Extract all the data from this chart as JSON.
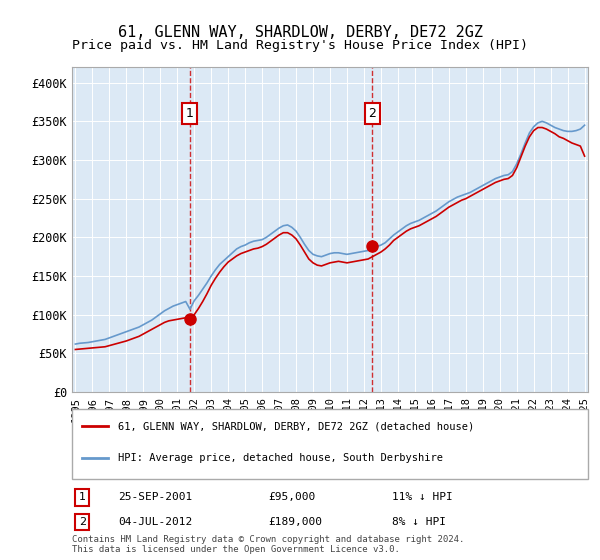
{
  "title": "61, GLENN WAY, SHARDLOW, DERBY, DE72 2GZ",
  "subtitle": "Price paid vs. HM Land Registry's House Price Index (HPI)",
  "title_fontsize": 11,
  "subtitle_fontsize": 9.5,
  "bg_color": "#dce9f5",
  "plot_bg": "#dce9f5",
  "fig_bg": "#ffffff",
  "legend_entry1": "61, GLENN WAY, SHARDLOW, DERBY, DE72 2GZ (detached house)",
  "legend_entry2": "HPI: Average price, detached house, South Derbyshire",
  "transaction1_date": "25-SEP-2001",
  "transaction1_price": 95000,
  "transaction1_pct": "11% ↓ HPI",
  "transaction1_label": "1",
  "transaction2_date": "04-JUL-2012",
  "transaction2_price": 189000,
  "transaction2_pct": "8% ↓ HPI",
  "transaction2_label": "2",
  "footer": "Contains HM Land Registry data © Crown copyright and database right 2024.\nThis data is licensed under the Open Government Licence v3.0.",
  "ylim": [
    0,
    420000
  ],
  "yticks": [
    0,
    50000,
    100000,
    150000,
    200000,
    250000,
    300000,
    350000,
    400000
  ],
  "ytick_labels": [
    "£0",
    "£50K",
    "£100K",
    "£150K",
    "£200K",
    "£250K",
    "£300K",
    "£350K",
    "£400K"
  ],
  "red_line_color": "#cc0000",
  "blue_line_color": "#6699cc",
  "marker_color": "#cc0000",
  "transaction1_x": 2001.73,
  "transaction2_x": 2012.5,
  "hpi_data_x": [
    1995,
    1995.25,
    1995.5,
    1995.75,
    1996,
    1996.25,
    1996.5,
    1996.75,
    1997,
    1997.25,
    1997.5,
    1997.75,
    1998,
    1998.25,
    1998.5,
    1998.75,
    1999,
    1999.25,
    1999.5,
    1999.75,
    2000,
    2000.25,
    2000.5,
    2000.75,
    2001,
    2001.25,
    2001.5,
    2001.75,
    2002,
    2002.25,
    2002.5,
    2002.75,
    2003,
    2003.25,
    2003.5,
    2003.75,
    2004,
    2004.25,
    2004.5,
    2004.75,
    2005,
    2005.25,
    2005.5,
    2005.75,
    2006,
    2006.25,
    2006.5,
    2006.75,
    2007,
    2007.25,
    2007.5,
    2007.75,
    2008,
    2008.25,
    2008.5,
    2008.75,
    2009,
    2009.25,
    2009.5,
    2009.75,
    2010,
    2010.25,
    2010.5,
    2010.75,
    2011,
    2011.25,
    2011.5,
    2011.75,
    2012,
    2012.25,
    2012.5,
    2012.75,
    2013,
    2013.25,
    2013.5,
    2013.75,
    2014,
    2014.25,
    2014.5,
    2014.75,
    2015,
    2015.25,
    2015.5,
    2015.75,
    2016,
    2016.25,
    2016.5,
    2016.75,
    2017,
    2017.25,
    2017.5,
    2017.75,
    2018,
    2018.25,
    2018.5,
    2018.75,
    2019,
    2019.25,
    2019.5,
    2019.75,
    2020,
    2020.25,
    2020.5,
    2020.75,
    2021,
    2021.25,
    2021.5,
    2021.75,
    2022,
    2022.25,
    2022.5,
    2022.75,
    2023,
    2023.25,
    2023.5,
    2023.75,
    2024,
    2024.25,
    2024.5,
    2024.75,
    2025
  ],
  "hpi_data_y": [
    62000,
    63000,
    63500,
    64000,
    65000,
    66000,
    67000,
    68000,
    70000,
    72000,
    74000,
    76000,
    78000,
    80000,
    82000,
    84000,
    87000,
    90000,
    93000,
    97000,
    101000,
    105000,
    108000,
    111000,
    113000,
    115000,
    117000,
    107000,
    118000,
    125000,
    133000,
    141000,
    150000,
    158000,
    165000,
    170000,
    175000,
    180000,
    185000,
    188000,
    190000,
    193000,
    195000,
    196000,
    197000,
    200000,
    204000,
    208000,
    212000,
    215000,
    216000,
    213000,
    208000,
    200000,
    191000,
    183000,
    178000,
    176000,
    175000,
    177000,
    179000,
    180000,
    180000,
    179000,
    178000,
    179000,
    180000,
    181000,
    182000,
    183000,
    186000,
    188000,
    190000,
    193000,
    198000,
    203000,
    207000,
    211000,
    215000,
    218000,
    220000,
    222000,
    225000,
    228000,
    231000,
    234000,
    238000,
    242000,
    246000,
    249000,
    252000,
    254000,
    256000,
    258000,
    261000,
    264000,
    267000,
    270000,
    273000,
    276000,
    278000,
    280000,
    281000,
    285000,
    295000,
    308000,
    322000,
    335000,
    343000,
    348000,
    350000,
    348000,
    345000,
    342000,
    340000,
    338000,
    337000,
    337000,
    338000,
    340000,
    345000
  ],
  "red_data_x": [
    1995,
    1995.25,
    1995.5,
    1995.75,
    1996,
    1996.25,
    1996.5,
    1996.75,
    1997,
    1997.25,
    1997.5,
    1997.75,
    1998,
    1998.25,
    1998.5,
    1998.75,
    1999,
    1999.25,
    1999.5,
    1999.75,
    2000,
    2000.25,
    2000.5,
    2000.75,
    2001,
    2001.25,
    2001.5,
    2001.75,
    2002,
    2002.25,
    2002.5,
    2002.75,
    2003,
    2003.25,
    2003.5,
    2003.75,
    2004,
    2004.25,
    2004.5,
    2004.75,
    2005,
    2005.25,
    2005.5,
    2005.75,
    2006,
    2006.25,
    2006.5,
    2006.75,
    2007,
    2007.25,
    2007.5,
    2007.75,
    2008,
    2008.25,
    2008.5,
    2008.75,
    2009,
    2009.25,
    2009.5,
    2009.75,
    2010,
    2010.25,
    2010.5,
    2010.75,
    2011,
    2011.25,
    2011.5,
    2011.75,
    2012,
    2012.25,
    2012.5,
    2012.75,
    2013,
    2013.25,
    2013.5,
    2013.75,
    2014,
    2014.25,
    2014.5,
    2014.75,
    2015,
    2015.25,
    2015.5,
    2015.75,
    2016,
    2016.25,
    2016.5,
    2016.75,
    2017,
    2017.25,
    2017.5,
    2017.75,
    2018,
    2018.25,
    2018.5,
    2018.75,
    2019,
    2019.25,
    2019.5,
    2019.75,
    2020,
    2020.25,
    2020.5,
    2020.75,
    2021,
    2021.25,
    2021.5,
    2021.75,
    2022,
    2022.25,
    2022.5,
    2022.75,
    2023,
    2023.25,
    2023.5,
    2023.75,
    2024,
    2024.25,
    2024.5,
    2024.75,
    2025
  ],
  "red_data_y": [
    55000,
    55500,
    56000,
    56500,
    57000,
    57500,
    58000,
    58500,
    60000,
    61500,
    63000,
    64500,
    66000,
    68000,
    70000,
    72000,
    75000,
    78000,
    81000,
    84000,
    87000,
    90000,
    92000,
    93000,
    94000,
    95000,
    96000,
    95000,
    100000,
    108000,
    117000,
    127000,
    138000,
    147000,
    155000,
    162000,
    168000,
    172000,
    176000,
    179000,
    181000,
    183000,
    185000,
    186000,
    188000,
    191000,
    195000,
    199000,
    203000,
    206000,
    206000,
    203000,
    198000,
    190000,
    181000,
    172000,
    167000,
    164000,
    163000,
    165000,
    167000,
    168000,
    169000,
    168000,
    167000,
    168000,
    169000,
    170000,
    171000,
    172000,
    175000,
    178000,
    181000,
    185000,
    190000,
    196000,
    200000,
    204000,
    208000,
    211000,
    213000,
    215000,
    218000,
    221000,
    224000,
    227000,
    231000,
    235000,
    239000,
    242000,
    245000,
    248000,
    250000,
    253000,
    256000,
    259000,
    262000,
    265000,
    268000,
    271000,
    273000,
    275000,
    276000,
    280000,
    290000,
    304000,
    318000,
    330000,
    338000,
    342000,
    342000,
    340000,
    337000,
    334000,
    330000,
    328000,
    325000,
    322000,
    320000,
    318000,
    305000
  ]
}
